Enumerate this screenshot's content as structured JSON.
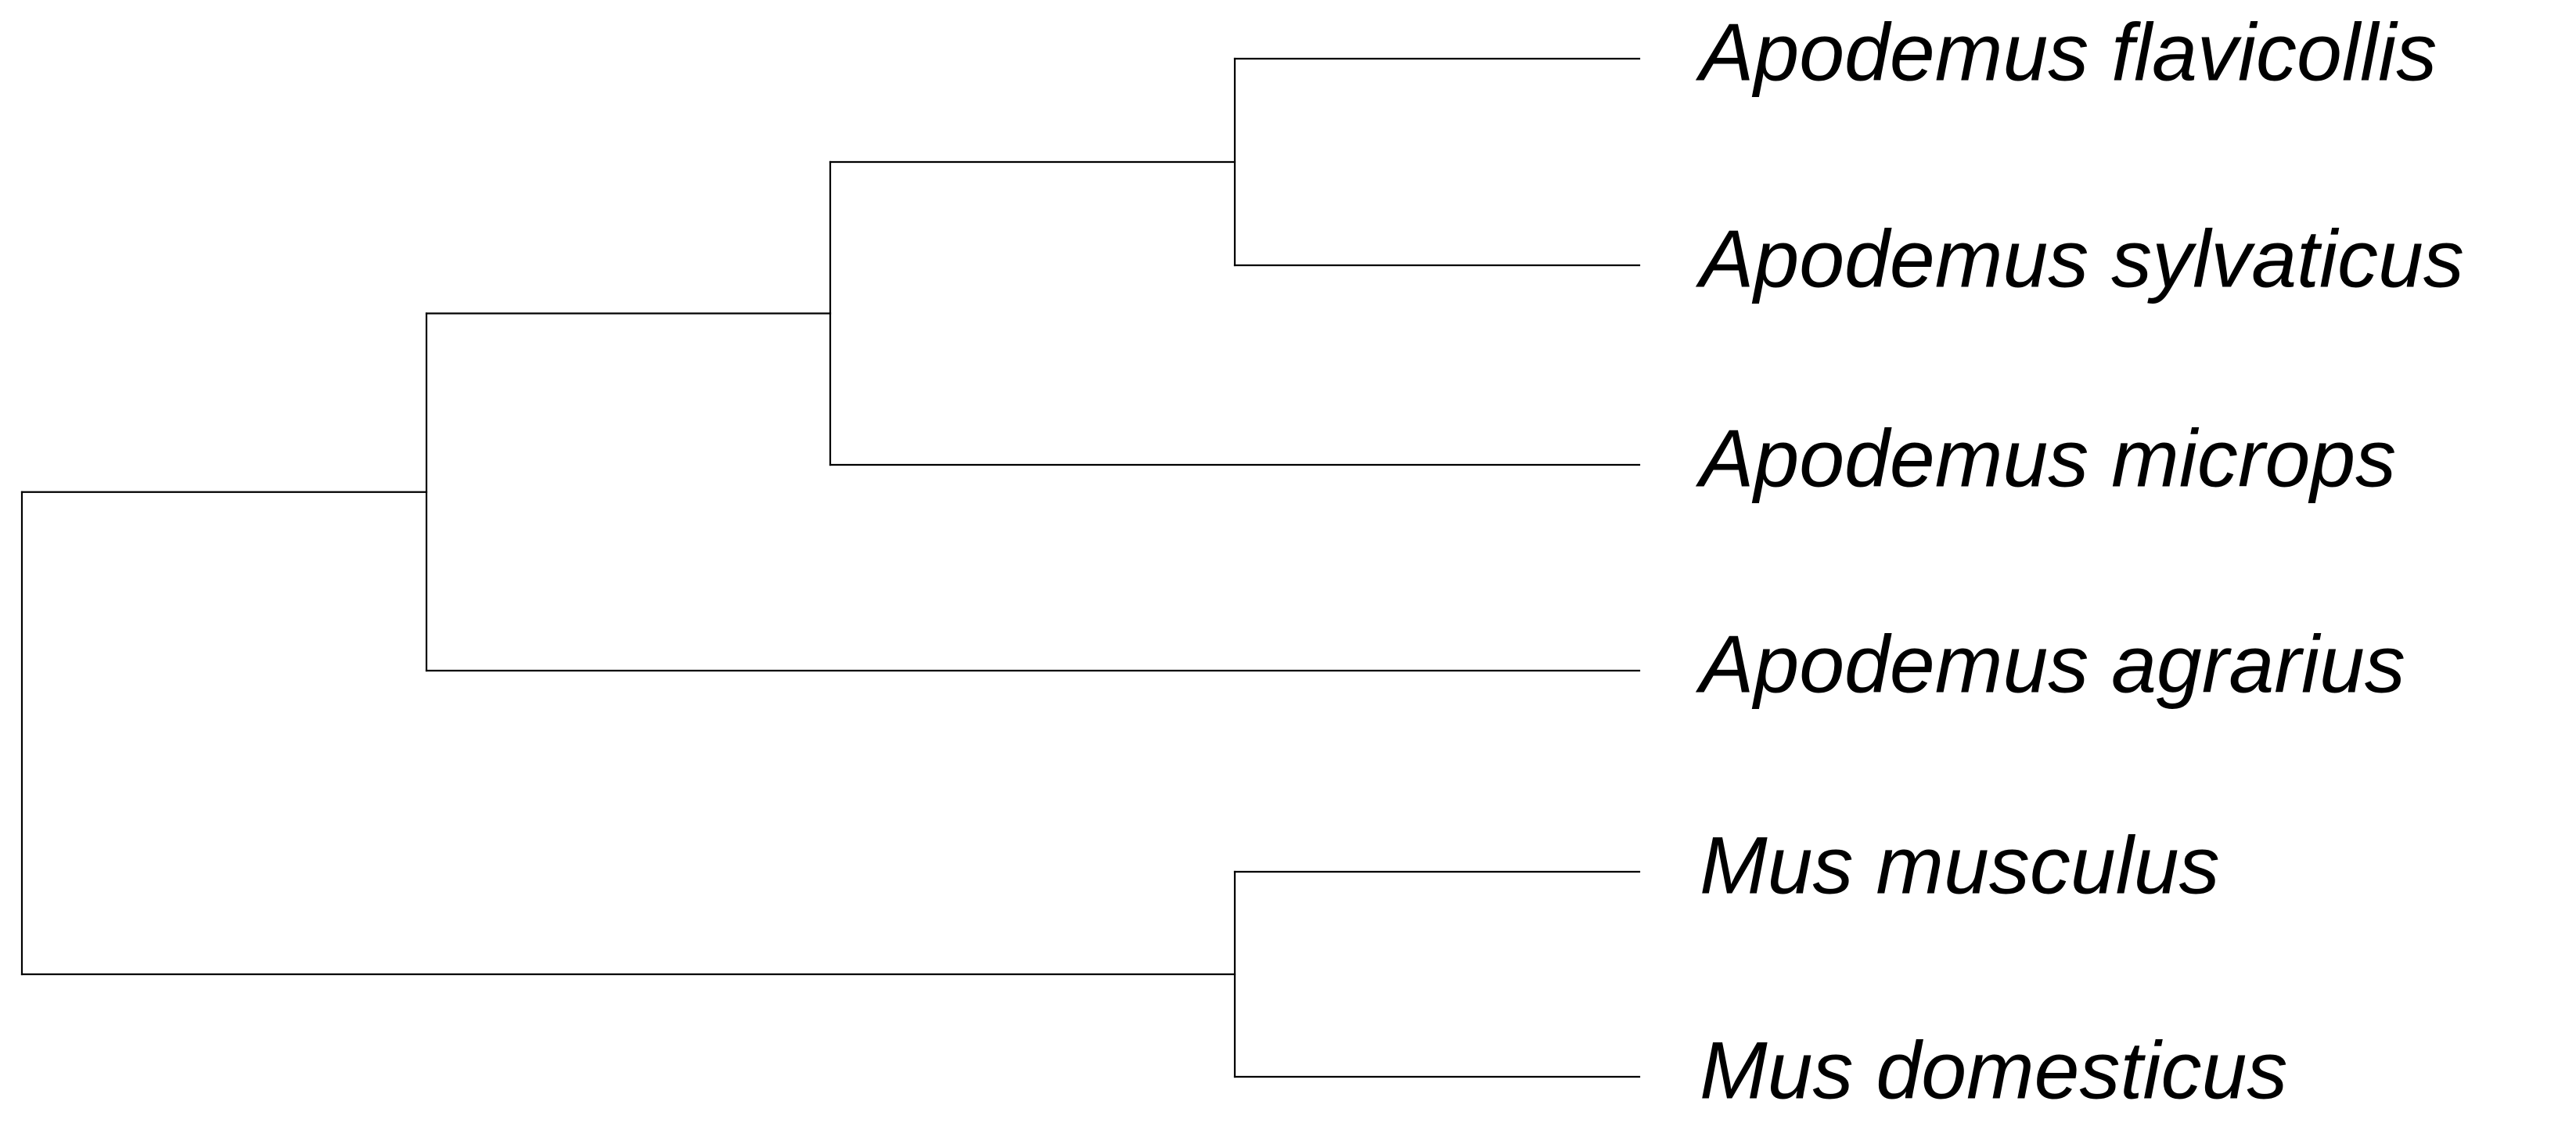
{
  "tree": {
    "colors": {
      "branch": "#000000",
      "label": "#000000",
      "background": "#ffffff"
    },
    "taxa": [
      "Apodemus flavicollis",
      "Apodemus sylvaticus",
      "Apodemus microps",
      "Apodemus agrarius",
      "Mus musculus",
      "Mus domesticus"
    ],
    "topology": {
      "id": "root",
      "children": [
        {
          "id": "apodemus-clade",
          "children": [
            {
              "id": "flav-sylv-microps-clade",
              "children": [
                {
                  "id": "flav-sylv-clade",
                  "children": [
                    {
                      "taxon": 0
                    },
                    {
                      "taxon": 1
                    }
                  ]
                },
                {
                  "taxon": 2
                }
              ]
            },
            {
              "taxon": 3
            }
          ]
        },
        {
          "id": "mus-clade",
          "children": [
            {
              "taxon": 4
            },
            {
              "taxon": 5
            }
          ]
        }
      ]
    }
  }
}
